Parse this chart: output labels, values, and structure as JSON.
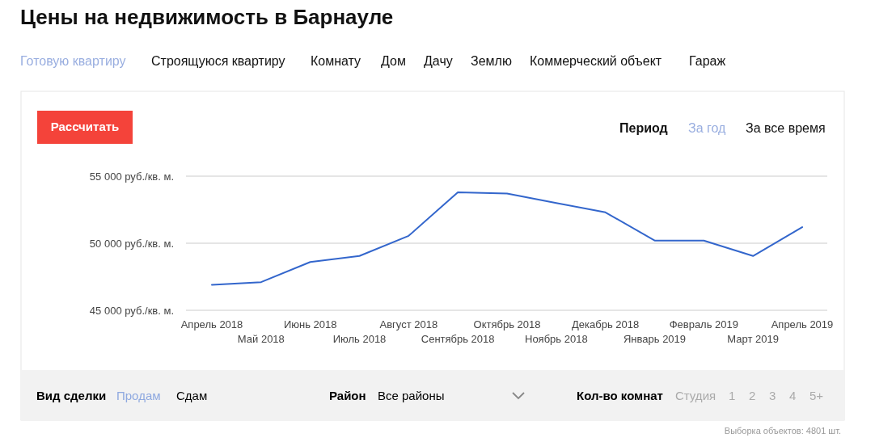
{
  "chart_data": {
    "type": "line",
    "title": "Цены на недвижимость в Барнауле",
    "categories": [
      "Апрель 2018",
      "Май 2018",
      "Июнь 2018",
      "Июль 2018",
      "Август 2018",
      "Сентябрь 2018",
      "Октябрь 2018",
      "Ноябрь 2018",
      "Декабрь 2018",
      "Январь 2019",
      "Февраль 2019",
      "Март 2019",
      "Апрель 2019"
    ],
    "series": [
      {
        "color": "#3366cc",
        "values": [
          46900,
          47100,
          48600,
          49050,
          50550,
          53800,
          53700,
          53000,
          52300,
          50200,
          50200,
          49050,
          51200
        ]
      }
    ],
    "ylim": [
      45000,
      55000
    ],
    "yticks": [
      {
        "value": 45000,
        "label": "45 000 руб./кв. м."
      },
      {
        "value": 50000,
        "label": "50 000 руб./кв. м."
      },
      {
        "value": 55000,
        "label": "55 000 руб./кв. м."
      }
    ],
    "grid": "y",
    "marker": "none",
    "line_style": "solid",
    "annotations": [
      "Готовую квартиру",
      "Строящуюся квартиру",
      "Комнату",
      "Дом",
      "Дачу",
      "Землю",
      "Коммерческий объект",
      "Гараж",
      "Рассчитать",
      "Период",
      "За год",
      "За все время",
      "Вид сделки",
      "Продам",
      "Сдам",
      "Район",
      "Все районы",
      "Кол-во комнат",
      "Студия",
      "1",
      "2",
      "3",
      "4",
      "5+",
      "Выборка объектов: 4801 шт."
    ]
  }
}
